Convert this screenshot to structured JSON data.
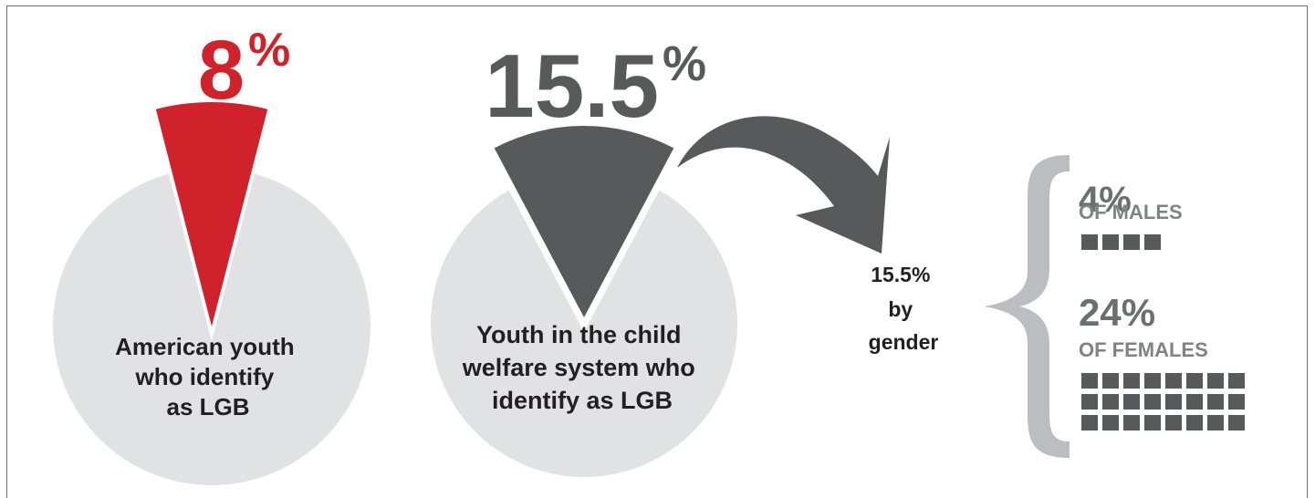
{
  "colors": {
    "accent": "#d0222b",
    "dark": "#58595b",
    "pie_bg": "#e1e2e3",
    "brace": "#bcbdc0",
    "text": "#231f20",
    "subtext": "#808285"
  },
  "chart_data": [
    {
      "type": "pie",
      "value_label": "8",
      "percent_sign": "%",
      "values": [
        8,
        92
      ],
      "description": "American youth who identify as LGB",
      "description_lines": [
        "American youth",
        "who identify",
        "as LGB"
      ],
      "highlight_color": "#d0222b",
      "base_color": "#e1e2e3"
    },
    {
      "type": "pie",
      "value_label": "15.5",
      "percent_sign": "%",
      "values": [
        15.5,
        84.5
      ],
      "description": "Youth in the child welfare system who identify as LGB",
      "description_lines": [
        "Youth in the child",
        "welfare system who",
        "identify as LGB"
      ],
      "highlight_color": "#58595b",
      "base_color": "#e1e2e3"
    },
    {
      "type": "bar",
      "label_lines": [
        "15.5%",
        "by",
        "gender"
      ],
      "categories": [
        "OF MALES",
        "OF FEMALES"
      ],
      "values": [
        4,
        24
      ],
      "value_labels": [
        "4%",
        "24%"
      ],
      "unit": "%",
      "icon_color": "#58595b"
    }
  ]
}
